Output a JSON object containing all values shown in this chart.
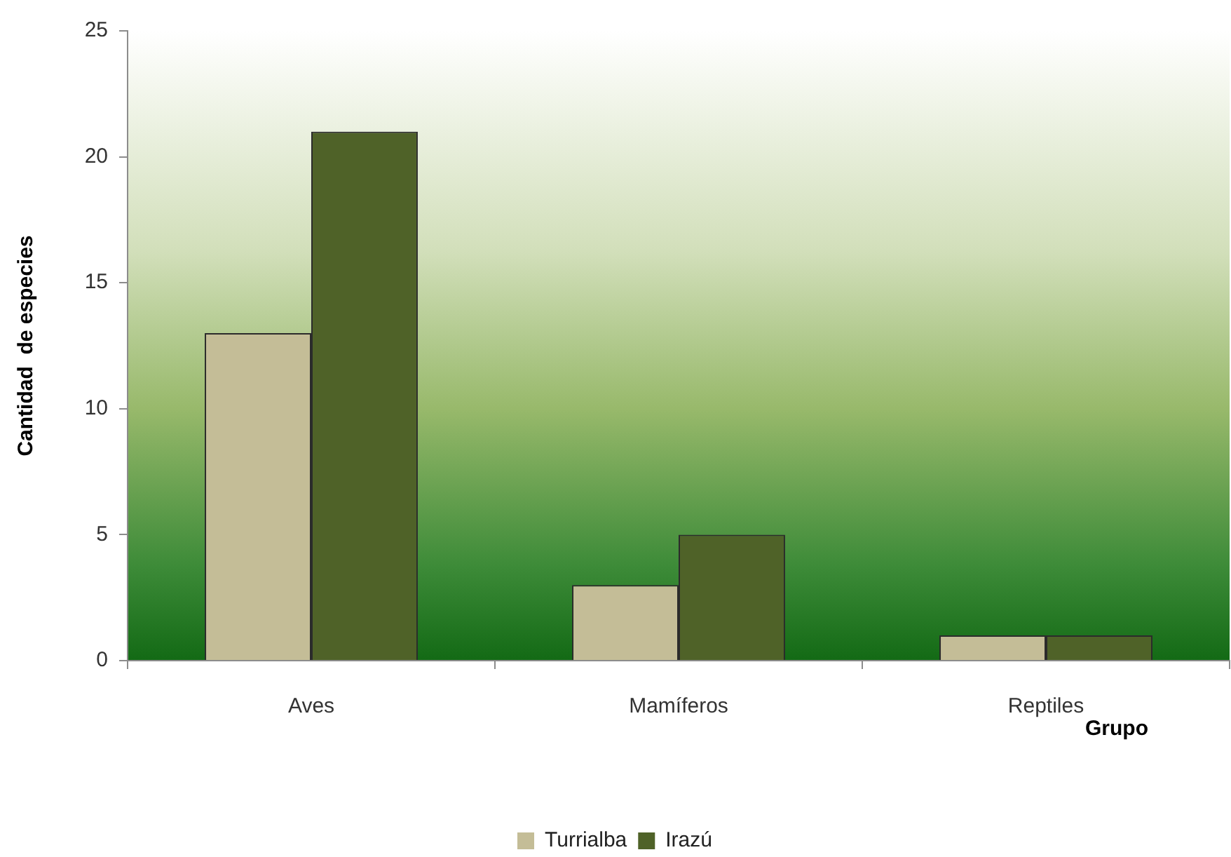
{
  "chart_data": {
    "type": "bar",
    "ylabel": "Cantidad  de especies",
    "xlabel": "Grupo",
    "categories": [
      "Aves",
      "Mamíferos",
      "Reptiles"
    ],
    "series": [
      {
        "name": "Turrialba",
        "color": "#c4bd97",
        "values": [
          13,
          3,
          1
        ]
      },
      {
        "name": "Irazú",
        "color": "#4f6228",
        "values": [
          21,
          5,
          1
        ]
      }
    ],
    "ylim": [
      0,
      25
    ],
    "yticks": [
      0,
      5,
      10,
      15,
      20,
      25
    ],
    "grid": false,
    "legend": "bottom"
  }
}
